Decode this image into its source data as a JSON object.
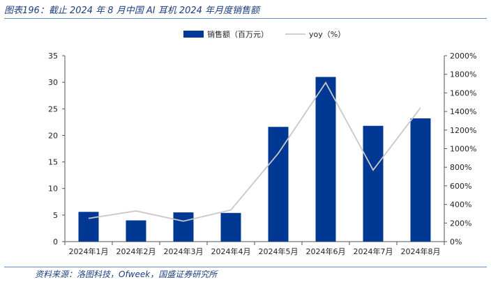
{
  "figure_title": "图表196：截止 2024 年 8 月中国 AI 耳机 2024 年月度销售额",
  "source": "资料来源：洛图科技，Ofweek，国盛证券研究所",
  "colors": {
    "bar": "#003894",
    "line": "#c8c8c8",
    "rule": "#6b8cc3",
    "title": "#1f3f7f"
  },
  "chart_data": {
    "type": "bar",
    "categories": [
      "2024年1月",
      "2024年2月",
      "2024年3月",
      "2024年4月",
      "2024年5月",
      "2024年6月",
      "2024年7月",
      "2024年8月"
    ],
    "series": [
      {
        "name": "销售额（百万元）",
        "type": "bar",
        "axis": "left",
        "values": [
          5.6,
          4.0,
          5.5,
          5.4,
          21.6,
          31.0,
          21.8,
          23.2
        ]
      },
      {
        "name": "yoy（%）",
        "type": "line",
        "axis": "right",
        "values": [
          250,
          330,
          220,
          340,
          950,
          1710,
          770,
          1440
        ]
      }
    ],
    "left_axis": {
      "ylim": [
        0,
        35
      ],
      "ticks": [
        "0",
        "5",
        "10",
        "15",
        "20",
        "25",
        "30",
        "35"
      ]
    },
    "right_axis": {
      "ylim": [
        0,
        2000
      ],
      "ticks": [
        "0%",
        "200%",
        "400%",
        "600%",
        "800%",
        "1000%",
        "1200%",
        "1400%",
        "1600%",
        "1800%",
        "2000%"
      ]
    },
    "legend": {
      "placement": "top-center",
      "entries": [
        "销售额（百万元）",
        "yoy（%）"
      ]
    },
    "grid": false
  }
}
